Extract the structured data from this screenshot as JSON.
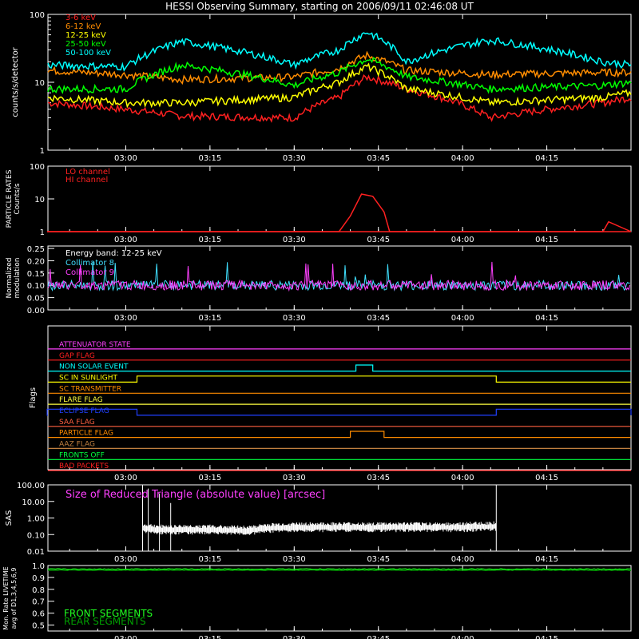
{
  "title": "HESSI Observing Summary, starting on 2006/09/11 02:46:08 UT",
  "time_ticks": [
    "03:00",
    "03:15",
    "03:30",
    "03:45",
    "04:00",
    "04:15"
  ],
  "colors": {
    "bg": "#000000",
    "axis": "#ffffff"
  },
  "chart_data": [
    {
      "type": "line",
      "name": "count-rates",
      "ylabel": "counts/s/detector",
      "yscale": "log",
      "ylim": [
        1,
        100
      ],
      "yticks": [
        "1",
        "10",
        "100"
      ],
      "x_range": [
        "02:46:08",
        "04:30:00"
      ],
      "series": [
        {
          "name": "3-6 keV",
          "color": "#ff2020",
          "x": [
            "02:46",
            "03:00",
            "03:10",
            "03:30",
            "03:38",
            "03:43",
            "03:50",
            "04:05",
            "04:25",
            "04:30"
          ],
          "values": [
            5,
            4,
            3.2,
            3,
            6,
            12,
            8,
            3,
            5,
            6
          ]
        },
        {
          "name": "6-12 keV",
          "color": "#ff8c00",
          "x": [
            "02:46",
            "03:00",
            "03:10",
            "03:30",
            "03:38",
            "03:43",
            "03:50",
            "04:05",
            "04:25",
            "04:30"
          ],
          "values": [
            15,
            13,
            11,
            12,
            16,
            25,
            15,
            13,
            14,
            14
          ]
        },
        {
          "name": "12-25 keV",
          "color": "#ffff00",
          "x": [
            "02:46",
            "03:00",
            "03:10",
            "03:30",
            "03:38",
            "03:43",
            "03:50",
            "04:05",
            "04:25",
            "04:30"
          ],
          "values": [
            6,
            5,
            5,
            6,
            10,
            17,
            8,
            5,
            6,
            7
          ]
        },
        {
          "name": "25-50 keV",
          "color": "#00ff00",
          "x": [
            "02:46",
            "03:00",
            "03:10",
            "03:30",
            "03:38",
            "03:43",
            "03:50",
            "04:05",
            "04:25",
            "04:30"
          ],
          "values": [
            8,
            8,
            18,
            9,
            14,
            22,
            12,
            8,
            9,
            10
          ]
        },
        {
          "name": "50-100 keV",
          "color": "#00ffff",
          "x": [
            "02:46",
            "03:00",
            "03:10",
            "03:30",
            "03:38",
            "03:43",
            "03:50",
            "04:05",
            "04:25",
            "04:30"
          ],
          "values": [
            18,
            17,
            40,
            18,
            30,
            55,
            20,
            42,
            20,
            18
          ]
        }
      ]
    },
    {
      "type": "line",
      "name": "particle-rates",
      "ylabel": "PARTICLE RATES Counts/s",
      "yscale": "log",
      "ylim": [
        1,
        100
      ],
      "yticks": [
        "1",
        "10",
        "100"
      ],
      "series": [
        {
          "name": "LO channel",
          "color": "#ff2020",
          "x": [
            "02:46",
            "03:38",
            "03:40",
            "03:42",
            "03:44",
            "03:46",
            "03:47",
            "04:25",
            "04:26",
            "04:30"
          ],
          "values": [
            1,
            1,
            3,
            14,
            12,
            4,
            1,
            1,
            2,
            1
          ]
        },
        {
          "name": "HI channel",
          "color": "#ff2020",
          "x": [
            "02:46",
            "04:30"
          ],
          "values": [
            1,
            1
          ]
        }
      ]
    },
    {
      "type": "line",
      "name": "modulation",
      "ylabel": "Normalized modulation",
      "ylim": [
        0.0,
        0.26
      ],
      "yticks": [
        "0.00",
        "0.05",
        "0.10",
        "0.15",
        "0.20",
        "0.25"
      ],
      "annotation": "Energy band: 12-25 keV",
      "series": [
        {
          "name": "Collimator 8",
          "color": "#40e0ff",
          "baseline": 0.1
        },
        {
          "name": "Collimator 9",
          "color": "#ff40ff",
          "baseline": 0.1
        }
      ]
    },
    {
      "type": "table",
      "name": "flags",
      "ylabel": "Flags",
      "flags": [
        {
          "label": "ATTENUATOR STATE",
          "color": "#ff40ff",
          "segments": []
        },
        {
          "label": "GAP FLAG",
          "color": "#ff2020",
          "segments": []
        },
        {
          "label": "NON SOLAR EVENT",
          "color": "#00ffff",
          "segments": [
            [
              "03:41",
              "03:44"
            ]
          ]
        },
        {
          "label": "SC IN SUNLIGHT",
          "color": "#ffff00",
          "segments": [
            [
              "03:02",
              "04:06"
            ]
          ]
        },
        {
          "label": "SC TRANSMITTER",
          "color": "#ff8c00",
          "segments": []
        },
        {
          "label": "FLARE FLAG",
          "color": "#ffff40",
          "segments": []
        },
        {
          "label": "ECLIPSE FLAG",
          "color": "#2040ff",
          "segments": [
            [
              "02:46",
              "03:02"
            ],
            [
              "04:06",
              "04:30"
            ]
          ]
        },
        {
          "label": "SAA FLAG",
          "color": "#ff6040",
          "segments": []
        },
        {
          "label": "PARTICLE FLAG",
          "color": "#ff8c00",
          "segments": [
            [
              "03:40",
              "03:46"
            ]
          ]
        },
        {
          "label": "AAZ FLAG",
          "color": "#c08040",
          "segments": []
        },
        {
          "label": "FRONTS OFF",
          "color": "#00ff40",
          "segments": []
        },
        {
          "label": "BAD PACKETS",
          "color": "#ff2020",
          "segments": []
        }
      ]
    },
    {
      "type": "line",
      "name": "sas",
      "ylabel": "SAS",
      "yscale": "log",
      "ylim": [
        0.01,
        100
      ],
      "yticks": [
        "0.01",
        "0.10",
        "1.00",
        "10.00",
        "100.00"
      ],
      "annotation": "Size of Reduced Triangle (absolute value) [arcsec]",
      "series": [
        {
          "name": "triangle",
          "color": "#ffffff",
          "x": [
            "03:03",
            "03:06",
            "03:15",
            "03:22",
            "03:25",
            "03:30",
            "03:45",
            "04:00",
            "04:06"
          ],
          "values": [
            0.3,
            0.25,
            0.25,
            0.22,
            0.3,
            0.35,
            0.35,
            0.35,
            0.4
          ]
        }
      ]
    },
    {
      "type": "line",
      "name": "livetime",
      "ylabel": "Mon. Rate LIVETIME avg of D1,3,4,5,6,9",
      "ylim": [
        0.45,
        1.0
      ],
      "yticks": [
        "0.5",
        "0.6",
        "0.7",
        "0.8",
        "0.9",
        "1.0"
      ],
      "series": [
        {
          "name": "FRONT SEGMENTS",
          "color": "#20ff20",
          "level": 0.97
        },
        {
          "name": "REAR SEGMENTS",
          "color": "#00a000",
          "level": 0.96
        }
      ]
    }
  ]
}
